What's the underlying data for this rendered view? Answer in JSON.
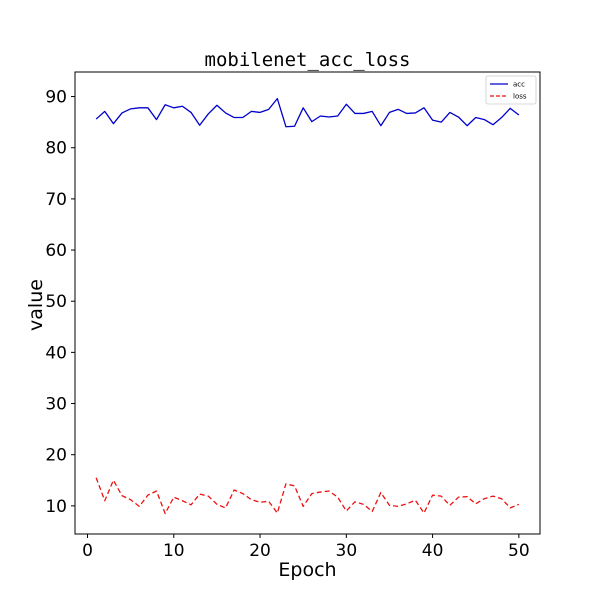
{
  "chart_data": {
    "type": "line",
    "title": "mobilenet_acc_loss",
    "xlabel": "Epoch",
    "ylabel": "value",
    "xlim": [
      -1.45,
      52.45
    ],
    "ylim": [
      4.5,
      94.8
    ],
    "xticks": [
      0,
      10,
      20,
      30,
      40,
      50
    ],
    "yticks": [
      10,
      20,
      30,
      40,
      50,
      60,
      70,
      80,
      90
    ],
    "grid": false,
    "legend_position": "top-right",
    "x": [
      1,
      2,
      3,
      4,
      5,
      6,
      7,
      8,
      9,
      10,
      11,
      12,
      13,
      14,
      15,
      16,
      17,
      18,
      19,
      20,
      21,
      22,
      23,
      24,
      25,
      26,
      27,
      28,
      29,
      30,
      31,
      32,
      33,
      34,
      35,
      36,
      37,
      38,
      39,
      40,
      41,
      42,
      43,
      44,
      45,
      46,
      47,
      48,
      49,
      50
    ],
    "series": [
      {
        "name": "acc",
        "color": "#0000cc",
        "dash": "solid",
        "values": [
          85.6,
          87.1,
          84.7,
          86.8,
          87.6,
          87.8,
          87.8,
          85.5,
          88.4,
          87.8,
          88.1,
          86.9,
          84.4,
          86.6,
          88.3,
          86.8,
          85.9,
          85.9,
          87.1,
          86.9,
          87.5,
          89.6,
          84.1,
          84.2,
          87.8,
          85.1,
          86.2,
          86.0,
          86.2,
          88.5,
          86.7,
          86.7,
          87.1,
          84.3,
          86.9,
          87.5,
          86.7,
          86.8,
          87.8,
          85.4,
          85.0,
          86.9,
          86.0,
          84.3,
          85.9,
          85.5,
          84.5,
          85.9,
          87.7,
          86.4
        ]
      },
      {
        "name": "loss",
        "color": "#ee1111",
        "dash": "dashed",
        "values": [
          15.5,
          11.0,
          15.0,
          12.0,
          11.2,
          9.9,
          12.1,
          12.9,
          8.5,
          11.7,
          11.0,
          10.2,
          12.3,
          11.9,
          10.3,
          9.6,
          13.1,
          12.4,
          11.2,
          10.7,
          10.9,
          8.6,
          14.3,
          13.9,
          9.9,
          12.4,
          12.7,
          12.9,
          11.7,
          9.0,
          10.8,
          10.3,
          8.9,
          12.6,
          10.1,
          9.9,
          10.4,
          11.1,
          8.6,
          12.1,
          11.9,
          10.1,
          11.7,
          11.8,
          10.4,
          11.4,
          11.9,
          11.4,
          9.6,
          10.3
        ]
      }
    ]
  }
}
